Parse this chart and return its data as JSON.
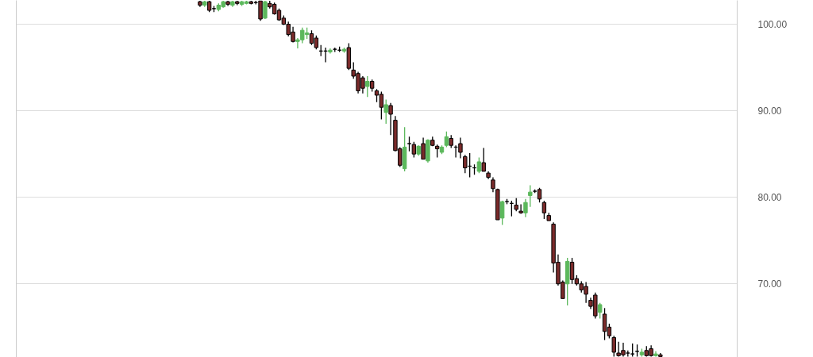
{
  "chart_data": {
    "type": "candlestick",
    "categories": [
      null,
      null,
      null,
      null,
      null,
      null,
      null,
      null,
      null,
      null,
      null,
      null,
      null,
      null,
      null,
      null,
      null,
      null,
      null,
      null,
      null,
      null,
      null,
      null,
      null,
      null,
      null,
      null,
      null,
      null,
      null,
      null,
      null,
      null,
      null,
      null,
      null,
      null,
      null,
      null,
      null,
      null,
      null,
      null,
      null,
      null,
      null,
      null,
      null,
      null,
      null,
      null,
      null,
      null,
      null,
      null,
      null,
      null,
      null,
      null,
      null,
      null,
      null,
      null,
      null,
      null,
      null,
      null,
      null,
      null,
      null,
      null,
      null,
      null,
      null,
      null,
      null,
      null,
      null,
      null,
      null,
      null,
      null,
      null,
      null,
      null,
      null,
      null,
      null,
      null,
      null,
      null,
      null,
      null,
      null,
      null,
      null,
      null,
      null,
      null,
      null,
      null,
      null,
      null,
      null,
      null,
      null,
      null,
      null,
      null,
      null,
      null,
      null,
      null,
      null,
      null,
      null,
      null,
      null,
      null,
      null,
      null,
      null,
      null,
      null,
      null,
      null,
      null,
      null,
      null,
      null,
      null,
      null,
      null,
      null,
      null,
      null,
      null,
      null,
      null,
      null,
      null,
      null,
      null,
      null,
      null,
      null,
      null,
      null,
      null,
      null,
      null,
      null,
      null,
      null
    ],
    "ohlc": [
      null,
      null,
      null,
      null,
      null,
      null,
      null,
      null,
      null,
      null,
      null,
      null,
      null,
      null,
      null,
      null,
      null,
      null,
      null,
      null,
      null,
      null,
      null,
      null,
      null,
      null,
      null,
      null,
      null,
      null,
      null,
      null,
      null,
      null,
      null,
      null,
      null,
      null,
      null,
      [
        102.6,
        102.7,
        102.0,
        102.2
      ],
      [
        102.2,
        102.7,
        102.0,
        102.6
      ],
      [
        102.6,
        102.7,
        101.4,
        101.6
      ],
      [
        101.8,
        102.1,
        101.4,
        101.8
      ],
      [
        101.7,
        102.4,
        101.5,
        102.2
      ],
      [
        102.0,
        102.7,
        101.9,
        102.6
      ],
      [
        102.6,
        102.7,
        102.1,
        102.3
      ],
      [
        102.2,
        102.7,
        102.0,
        102.6
      ],
      [
        102.6,
        102.7,
        102.2,
        102.4
      ],
      [
        102.3,
        102.7,
        102.1,
        102.6
      ],
      [
        102.4,
        102.7,
        102.3,
        102.6
      ],
      [
        102.6,
        102.7,
        102.3,
        102.4
      ],
      [
        102.5,
        102.7,
        102.3,
        102.5
      ],
      [
        102.7,
        102.7,
        100.4,
        100.6
      ],
      [
        100.7,
        102.7,
        100.6,
        102.6
      ],
      [
        102.4,
        102.7,
        101.8,
        102.0
      ],
      [
        102.3,
        102.5,
        101.1,
        101.2
      ],
      [
        101.6,
        101.8,
        100.4,
        100.5
      ],
      [
        100.7,
        101.0,
        99.9,
        100.0
      ],
      [
        100.0,
        100.3,
        98.6,
        98.8
      ],
      [
        99.1,
        99.7,
        97.9,
        98.0
      ],
      [
        98.0,
        98.4,
        97.2,
        98.2
      ],
      [
        98.2,
        99.6,
        97.8,
        99.3
      ],
      [
        98.8,
        99.6,
        98.3,
        99.0
      ],
      [
        98.9,
        99.3,
        97.6,
        97.8
      ],
      [
        98.4,
        98.7,
        97.1,
        97.3
      ],
      [
        96.9,
        97.6,
        96.3,
        96.9
      ],
      [
        96.9,
        97.3,
        95.6,
        96.9
      ],
      [
        96.8,
        97.2,
        96.6,
        97.0
      ],
      [
        97.1,
        97.3,
        96.8,
        97.1
      ],
      [
        97.0,
        97.4,
        96.8,
        97.0
      ],
      [
        96.9,
        97.3,
        96.7,
        97.1
      ],
      [
        97.3,
        97.8,
        94.7,
        94.9
      ],
      [
        94.7,
        95.6,
        93.7,
        94.0
      ],
      [
        94.3,
        94.5,
        92.0,
        92.3
      ],
      [
        93.8,
        94.0,
        92.0,
        92.6
      ],
      [
        92.8,
        94.0,
        91.6,
        93.4
      ],
      [
        93.4,
        93.6,
        92.2,
        92.6
      ],
      [
        92.3,
        92.5,
        91.0,
        91.8
      ],
      [
        91.9,
        92.2,
        89.0,
        90.4
      ],
      [
        89.8,
        91.3,
        88.5,
        90.7
      ],
      [
        90.6,
        90.9,
        87.2,
        89.6
      ],
      [
        88.9,
        89.4,
        85.3,
        85.4
      ],
      [
        85.6,
        85.8,
        83.5,
        83.7
      ],
      [
        83.3,
        88.1,
        83.0,
        85.8
      ],
      [
        86.2,
        87.0,
        85.3,
        86.2
      ],
      [
        86.1,
        86.4,
        84.6,
        85.0
      ],
      [
        85.0,
        86.0,
        84.8,
        85.9
      ],
      [
        86.2,
        86.9,
        84.4,
        84.4
      ],
      [
        84.2,
        86.7,
        84.0,
        86.6
      ],
      [
        86.6,
        87.0,
        85.9,
        86.0
      ],
      [
        85.9,
        86.1,
        84.6,
        85.6
      ],
      [
        85.2,
        86.0,
        85.0,
        85.8
      ],
      [
        86.0,
        87.6,
        85.8,
        87.0
      ],
      [
        86.8,
        87.2,
        85.7,
        86.0
      ],
      [
        85.8,
        86.0,
        84.6,
        85.8
      ],
      [
        86.2,
        86.9,
        84.5,
        85.2
      ],
      [
        84.7,
        84.9,
        82.8,
        83.4
      ],
      [
        83.6,
        85.1,
        82.3,
        83.6
      ],
      [
        83.4,
        83.8,
        82.6,
        83.4
      ],
      [
        83.0,
        84.6,
        82.8,
        84.1
      ],
      [
        84.0,
        85.7,
        83.0,
        83.0
      ],
      [
        82.8,
        83.0,
        82.1,
        82.3
      ],
      [
        82.0,
        82.3,
        80.6,
        81.0
      ],
      [
        80.9,
        81.0,
        77.4,
        77.4
      ],
      [
        77.6,
        79.6,
        76.8,
        79.5
      ],
      [
        79.5,
        79.8,
        79.2,
        79.5
      ],
      [
        79.3,
        79.6,
        77.8,
        79.3
      ],
      [
        79.1,
        79.9,
        78.4,
        78.6
      ],
      [
        78.4,
        79.2,
        78.1,
        78.2
      ],
      [
        78.2,
        79.8,
        77.7,
        79.4
      ],
      [
        80.2,
        81.4,
        78.9,
        80.6
      ],
      [
        80.7,
        80.9,
        80.5,
        80.7
      ],
      [
        80.9,
        81.1,
        79.4,
        79.8
      ],
      [
        79.4,
        79.6,
        77.5,
        78.2
      ],
      [
        77.9,
        78.2,
        77.3,
        77.3
      ],
      [
        76.9,
        77.1,
        71.3,
        72.4
      ],
      [
        72.5,
        73.4,
        69.8,
        70.0
      ],
      [
        70.2,
        70.4,
        68.3,
        68.3
      ],
      [
        70.0,
        73.0,
        67.5,
        72.6
      ],
      [
        72.5,
        73.0,
        70.0,
        70.5
      ],
      [
        70.6,
        71.0,
        69.8,
        70.0
      ],
      [
        70.0,
        70.3,
        69.0,
        69.3
      ],
      [
        69.7,
        70.2,
        67.8,
        68.8
      ],
      [
        68.1,
        68.4,
        67.1,
        67.4
      ],
      [
        68.7,
        69.0,
        66.0,
        66.3
      ],
      [
        66.7,
        67.8,
        66.0,
        67.6
      ],
      [
        66.5,
        67.2,
        63.5,
        64.5
      ],
      [
        65.0,
        65.4,
        63.7,
        64.0
      ],
      [
        63.8,
        64.0,
        61.6,
        62.1
      ],
      [
        62.0,
        63.3,
        61.6,
        61.7
      ],
      [
        62.3,
        63.2,
        61.6,
        61.8
      ],
      [
        62.0,
        62.3,
        61.6,
        62.0
      ],
      [
        61.9,
        63.1,
        61.6,
        61.9
      ],
      [
        62.2,
        63.0,
        61.6,
        62.2
      ],
      [
        61.8,
        62.5,
        61.6,
        62.1
      ],
      [
        62.3,
        62.8,
        61.6,
        61.7
      ],
      [
        62.5,
        62.9,
        61.6,
        61.7
      ],
      [
        61.7,
        62.2,
        61.6,
        61.9
      ],
      [
        61.8,
        62.0,
        61.6,
        61.6
      ],
      null,
      null,
      null,
      null,
      null,
      null,
      null,
      null,
      null,
      null,
      null,
      null,
      null,
      null,
      null,
      null
    ],
    "colors": [
      null,
      null,
      null,
      null,
      null,
      null,
      null,
      null,
      null,
      null,
      null,
      null,
      null,
      null,
      null,
      null,
      null,
      null,
      null,
      null,
      null,
      null,
      null,
      null,
      null,
      null,
      null,
      null,
      null,
      null,
      null,
      null,
      null,
      null,
      null,
      null,
      null,
      null,
      null,
      "#7b2b2b",
      "#5cb85c",
      "#7b2b2b",
      "#000000",
      "#5cb85c",
      "#5cb85c",
      "#7b2b2b",
      "#5cb85c",
      "#7b2b2b",
      "#5cb85c",
      "#5cb85c",
      "#7b2b2b",
      "#000000",
      "#7b2b2b",
      "#5cb85c",
      "#7b2b2b",
      "#7b2b2b",
      "#7b2b2b",
      "#7b2b2b",
      "#7b2b2b",
      "#7b2b2b",
      "#5cb85c",
      "#5cb85c",
      "#5cb85c",
      "#7b2b2b",
      "#7b2b2b",
      "#000000",
      "#000000",
      "#5cb85c",
      "#000000",
      "#000000",
      "#5cb85c",
      "#7b2b2b",
      "#7b2b2b",
      "#7b2b2b",
      "#7b2b2b",
      "#5cb85c",
      "#7b2b2b",
      "#7b2b2b",
      "#7b2b2b",
      "#5cb85c",
      "#7b2b2b",
      "#7b2b2b",
      "#7b2b2b",
      "#5cb85c",
      "#000000",
      "#7b2b2b",
      "#5cb85c",
      "#7b2b2b",
      "#5cb85c",
      "#7b2b2b",
      "#7b2b2b",
      "#5cb85c",
      "#5cb85c",
      "#7b2b2b",
      "#000000",
      "#7b2b2b",
      "#7b2b2b",
      "#000000",
      "#000000",
      "#5cb85c",
      "#7b2b2b",
      "#7b2b2b",
      "#7b2b2b",
      "#7b2b2b",
      "#5cb85c",
      "#000000",
      "#000000",
      "#7b2b2b",
      "#7b2b2b",
      "#5cb85c",
      "#5cb85c",
      "#000000",
      "#7b2b2b",
      "#7b2b2b",
      "#7b2b2b",
      "#7b2b2b",
      "#7b2b2b",
      "#7b2b2b",
      "#5cb85c",
      "#7b2b2b",
      "#7b2b2b",
      "#7b2b2b",
      "#7b2b2b",
      "#7b2b2b",
      "#7b2b2b",
      "#5cb85c",
      "#7b2b2b",
      "#7b2b2b",
      "#7b2b2b",
      "#7b2b2b",
      "#7b2b2b",
      "#000000",
      "#000000",
      "#000000",
      "#5cb85c",
      "#7b2b2b",
      "#7b2b2b",
      "#5cb85c",
      "#7b2b2b",
      null,
      null,
      null,
      null,
      null,
      null,
      null,
      null,
      null,
      null,
      null,
      null,
      null,
      null,
      null,
      null
    ],
    "ylim": [
      61.5,
      102.75
    ],
    "yticks": [
      {
        "value": 70,
        "label": "70.00"
      },
      {
        "value": 80,
        "label": "80.00"
      },
      {
        "value": 90,
        "label": "90.00"
      },
      {
        "value": 100,
        "label": "100.00"
      }
    ],
    "grid": "y",
    "tick_labels": "y"
  }
}
